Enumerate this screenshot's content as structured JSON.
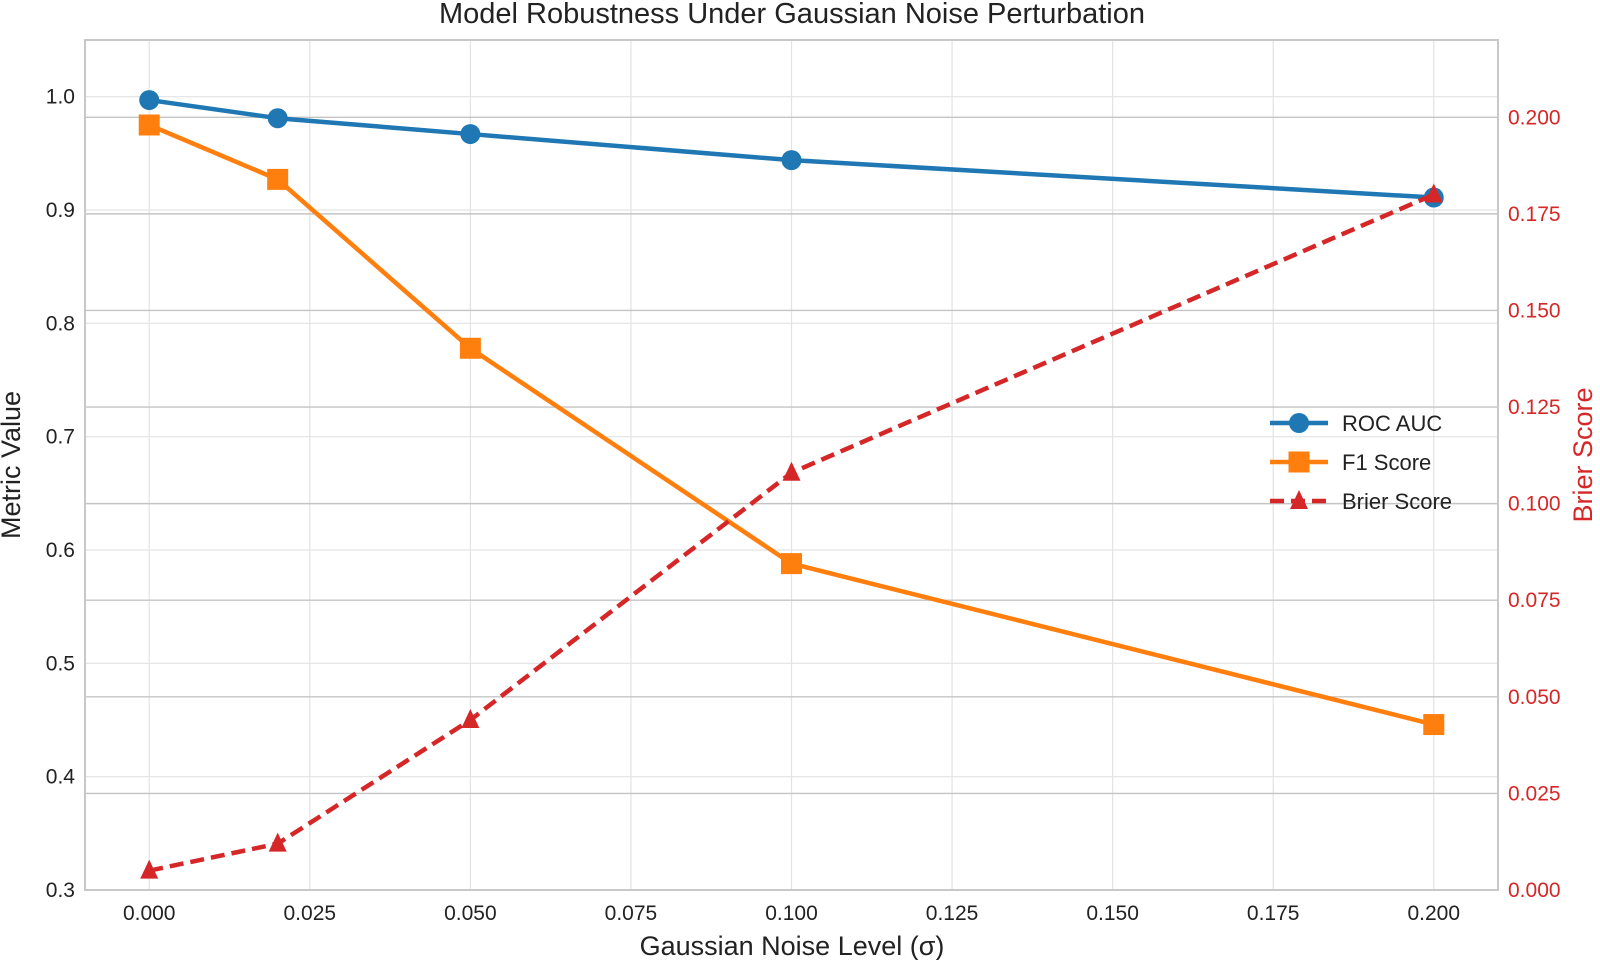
{
  "chart_data": {
    "type": "line",
    "title": "Model Robustness Under Gaussian Noise Perturbation",
    "xlabel": "Gaussian Noise Level (σ)",
    "ylabel": "Metric Value",
    "y2label": "Brier Score",
    "x": [
      0.0,
      0.02,
      0.05,
      0.1,
      0.2
    ],
    "xlim": [
      -0.01,
      0.21
    ],
    "ylim": [
      0.3,
      1.05
    ],
    "y2lim": [
      0.0,
      0.22
    ],
    "xticks": [
      "0.000",
      "0.025",
      "0.050",
      "0.075",
      "0.100",
      "0.125",
      "0.150",
      "0.175",
      "0.200"
    ],
    "yticks": [
      "0.3",
      "0.4",
      "0.5",
      "0.6",
      "0.7",
      "0.8",
      "0.9",
      "1.0"
    ],
    "y2ticks": [
      "0.000",
      "0.025",
      "0.050",
      "0.075",
      "0.100",
      "0.125",
      "0.150",
      "0.175",
      "0.200"
    ],
    "grid": true,
    "legend_position": "center-right",
    "series": [
      {
        "name": "ROC AUC",
        "axis": "left",
        "marker": "circle",
        "linestyle": "solid",
        "color": "#1f77b4",
        "values": [
          0.997,
          0.981,
          0.967,
          0.944,
          0.911
        ]
      },
      {
        "name": "F1 Score",
        "axis": "left",
        "marker": "square",
        "linestyle": "solid",
        "color": "#ff7f0e",
        "values": [
          0.975,
          0.927,
          0.778,
          0.588,
          0.446
        ]
      },
      {
        "name": "Brier Score",
        "axis": "right",
        "marker": "triangle",
        "linestyle": "dashed",
        "color": "#d62728",
        "values": [
          0.005,
          0.012,
          0.044,
          0.108,
          0.18
        ]
      }
    ],
    "right_axis_color": "#d62728"
  }
}
